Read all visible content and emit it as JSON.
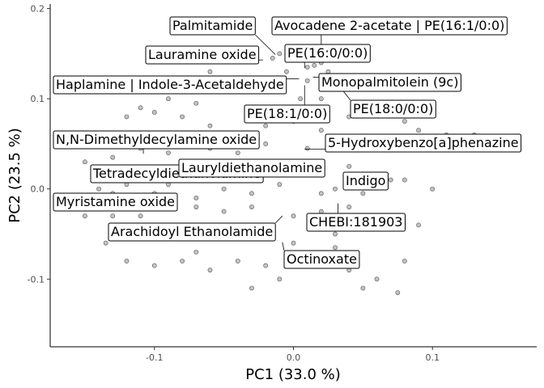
{
  "chart_data": {
    "type": "scatter",
    "xlabel": "PC1 (33.0 %)",
    "ylabel": "PC2 (23.5 %)",
    "xlim": [
      -0.175,
      0.175
    ],
    "ylim": [
      -0.175,
      0.205
    ],
    "xticks": [
      -0.1,
      0.0,
      0.1
    ],
    "xtick_labels": [
      "-0.1",
      "0.0",
      "0.1"
    ],
    "yticks": [
      -0.1,
      0.0,
      0.1,
      0.2
    ],
    "ytick_labels": [
      "-0.1",
      "0.0",
      "0.1",
      "0.2"
    ],
    "grid": false,
    "points": [
      [
        -0.01,
        0.15
      ],
      [
        0.005,
        0.145
      ],
      [
        0.01,
        0.135
      ],
      [
        0.015,
        0.137
      ],
      [
        -0.015,
        0.145
      ],
      [
        -0.03,
        0.15
      ],
      [
        0.02,
        0.14
      ],
      [
        0.025,
        0.13
      ],
      [
        -0.005,
        0.13
      ],
      [
        0.01,
        0.12
      ],
      [
        0.03,
        0.12
      ],
      [
        0.04,
        0.115
      ],
      [
        -0.02,
        0.115
      ],
      [
        -0.04,
        0.12
      ],
      [
        -0.06,
        0.13
      ],
      [
        -0.05,
        0.11
      ],
      [
        -0.08,
        0.11
      ],
      [
        -0.09,
        0.1
      ],
      [
        -0.07,
        0.095
      ],
      [
        0.005,
        0.1
      ],
      [
        0.02,
        0.1
      ],
      [
        -0.1,
        0.085
      ],
      [
        -0.11,
        0.09
      ],
      [
        -0.12,
        0.08
      ],
      [
        -0.08,
        0.08
      ],
      [
        -0.06,
        0.07
      ],
      [
        -0.04,
        0.06
      ],
      [
        -0.02,
        0.07
      ],
      [
        0.0,
        0.075
      ],
      [
        0.02,
        0.065
      ],
      [
        0.04,
        0.08
      ],
      [
        0.06,
        0.09
      ],
      [
        0.07,
        0.085
      ],
      [
        0.08,
        0.075
      ],
      [
        0.09,
        0.065
      ],
      [
        0.1,
        0.05
      ],
      [
        0.11,
        0.06
      ],
      [
        0.13,
        0.06
      ],
      [
        -0.1,
        0.05
      ],
      [
        -0.11,
        0.045
      ],
      [
        -0.09,
        0.04
      ],
      [
        -0.06,
        0.045
      ],
      [
        -0.04,
        0.04
      ],
      [
        -0.02,
        0.05
      ],
      [
        0.01,
        0.045
      ],
      [
        0.03,
        0.05
      ],
      [
        0.06,
        0.045
      ],
      [
        -0.15,
        0.03
      ],
      [
        -0.13,
        0.035
      ],
      [
        -0.12,
        0.02
      ],
      [
        -0.1,
        0.02
      ],
      [
        -0.08,
        0.03
      ],
      [
        -0.06,
        0.02
      ],
      [
        -0.04,
        0.015
      ],
      [
        -0.02,
        0.02
      ],
      [
        0.01,
        0.02
      ],
      [
        0.04,
        0.025
      ],
      [
        0.06,
        0.015
      ],
      [
        0.08,
        0.01
      ],
      [
        0.1,
        0.0
      ],
      [
        -0.14,
        0.0
      ],
      [
        -0.13,
        -0.005
      ],
      [
        -0.12,
        0.005
      ],
      [
        -0.1,
        -0.005
      ],
      [
        -0.09,
        0.005
      ],
      [
        -0.07,
        -0.01
      ],
      [
        -0.05,
        0.0
      ],
      [
        -0.03,
        -0.005
      ],
      [
        -0.01,
        0.005
      ],
      [
        0.02,
        -0.005
      ],
      [
        0.03,
        0.0
      ],
      [
        0.05,
        -0.005
      ],
      [
        0.07,
        0.01
      ],
      [
        -0.15,
        -0.03
      ],
      [
        -0.13,
        -0.03
      ],
      [
        -0.11,
        -0.03
      ],
      [
        -0.09,
        -0.02
      ],
      [
        -0.07,
        -0.02
      ],
      [
        -0.05,
        -0.025
      ],
      [
        -0.03,
        -0.02
      ],
      [
        0.0,
        -0.03
      ],
      [
        0.02,
        -0.025
      ],
      [
        0.04,
        -0.02
      ],
      [
        0.06,
        -0.03
      ],
      [
        -0.12,
        -0.05
      ],
      [
        -0.1,
        -0.05
      ],
      [
        -0.08,
        -0.05
      ],
      [
        -0.06,
        -0.055
      ],
      [
        -0.04,
        -0.045
      ],
      [
        -0.02,
        -0.05
      ],
      [
        0.0,
        -0.06
      ],
      [
        0.03,
        -0.05
      ],
      [
        -0.12,
        -0.08
      ],
      [
        -0.1,
        -0.085
      ],
      [
        -0.08,
        -0.08
      ],
      [
        -0.06,
        -0.09
      ],
      [
        -0.04,
        -0.08
      ],
      [
        -0.02,
        -0.085
      ],
      [
        0.01,
        -0.08
      ],
      [
        0.04,
        -0.09
      ],
      [
        0.06,
        -0.1
      ],
      [
        -0.03,
        -0.11
      ],
      [
        0.05,
        -0.11
      ],
      [
        0.075,
        -0.115
      ],
      [
        -0.135,
        -0.06
      ],
      [
        -0.07,
        -0.07
      ],
      [
        0.09,
        -0.04
      ],
      [
        0.08,
        -0.08
      ],
      [
        -0.01,
        -0.1
      ],
      [
        0.03,
        -0.065
      ]
    ],
    "labels": [
      {
        "text": "Palmitamide",
        "x": -0.013,
        "y": 0.149
      },
      {
        "text": "Avocadene 2-acetate | PE(16:1/0:0)",
        "x": 0.02,
        "y": 0.14
      },
      {
        "text": "Lauramine oxide",
        "x": -0.022,
        "y": 0.143
      },
      {
        "text": "PE(16:0/0:0)",
        "x": 0.008,
        "y": 0.134
      },
      {
        "text": "Monopalmitolein (9c)",
        "x": 0.014,
        "y": 0.124
      },
      {
        "text": "Haplamine | Indole-3-Acetaldehyde",
        "x": 0.004,
        "y": 0.122
      },
      {
        "text": "PE(18:0/0:0)",
        "x": 0.034,
        "y": 0.112
      },
      {
        "text": "PE(18:1/0:0)",
        "x": 0.008,
        "y": 0.115
      },
      {
        "text": "N,N-Dimethyldecylamine oxide",
        "x": -0.108,
        "y": 0.039
      },
      {
        "text": "5-Hydroxybenzo[a]phenazine",
        "x": 0.008,
        "y": 0.044
      },
      {
        "text": "Tetradecyldiethanolamine",
        "x": -0.085,
        "y": 0.024
      },
      {
        "text": "Lauryldiethanolamine",
        "x": 0.008,
        "y": 0.012
      },
      {
        "text": "Indigo",
        "x": 0.036,
        "y": -0.003
      },
      {
        "text": "Myristamine oxide",
        "x": -0.127,
        "y": -0.012
      },
      {
        "text": "CHEBI:181903",
        "x": 0.032,
        "y": -0.016
      },
      {
        "text": "Arachidoyl Ethanolamide",
        "x": -0.008,
        "y": -0.03
      },
      {
        "text": "Octinoxate",
        "x": -0.008,
        "y": -0.059
      }
    ]
  }
}
